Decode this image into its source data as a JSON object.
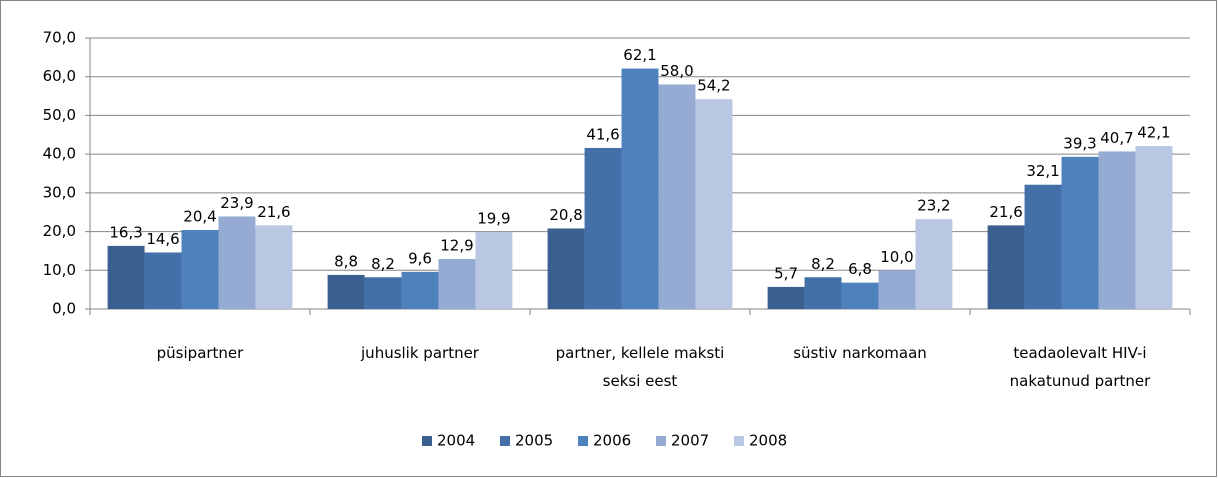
{
  "chart_data": {
    "type": "bar",
    "categories": [
      "püsipartner",
      "juhuslik partner",
      "partner, kellele maksti seksi eest",
      "süstiv narkomaan",
      "teadaolevalt HIV-i nakatunud partner"
    ],
    "series": [
      {
        "name": "2004",
        "color": "#3b5f8e",
        "values": [
          16.3,
          8.8,
          20.8,
          5.7,
          21.6
        ],
        "value_labels": [
          "16,3",
          "8,8",
          "20,8",
          "5,7",
          "21,6"
        ]
      },
      {
        "name": "2005",
        "color": "#4470aa",
        "values": [
          14.6,
          8.2,
          41.6,
          8.2,
          32.1
        ],
        "value_labels": [
          "14,6",
          "8,2",
          "41,6",
          "8,2",
          "32,1"
        ]
      },
      {
        "name": "2006",
        "color": "#4f81bd",
        "values": [
          20.4,
          9.6,
          62.1,
          6.8,
          39.3
        ],
        "value_labels": [
          "20,4",
          "9,6",
          "62,1",
          "6,8",
          "39,3"
        ]
      },
      {
        "name": "2007",
        "color": "#95abd3",
        "values": [
          23.9,
          12.9,
          58.0,
          10.0,
          40.7
        ],
        "value_labels": [
          "23,9",
          "12,9",
          "58,0",
          "10,0",
          "40,7"
        ]
      },
      {
        "name": "2008",
        "color": "#b9c7e3",
        "values": [
          21.6,
          19.9,
          54.2,
          23.2,
          42.1
        ],
        "value_labels": [
          "21,6",
          "19,9",
          "54,2",
          "23,2",
          "42,1"
        ]
      }
    ],
    "ylim": [
      0,
      70
    ],
    "yticks": [
      {
        "value": 0,
        "label": "0,0"
      },
      {
        "value": 10,
        "label": "10,0"
      },
      {
        "value": 20,
        "label": "20,0"
      },
      {
        "value": 30,
        "label": "30,0"
      },
      {
        "value": 40,
        "label": "40,0"
      },
      {
        "value": 50,
        "label": "50,0"
      },
      {
        "value": 60,
        "label": "60,0"
      },
      {
        "value": 70,
        "label": "70,0"
      }
    ],
    "grid": true,
    "legend": "bottom"
  }
}
